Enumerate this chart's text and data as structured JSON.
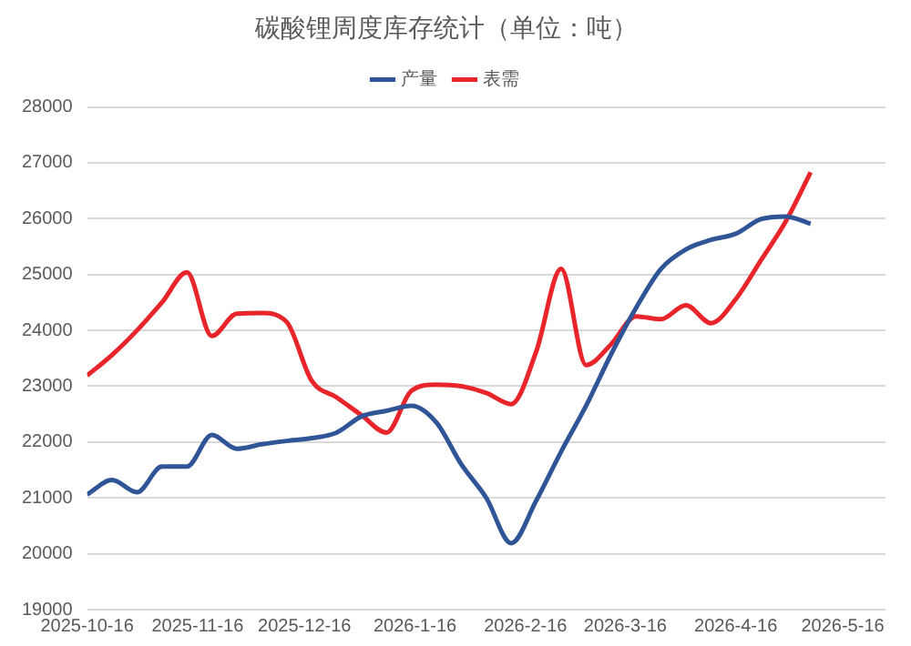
{
  "chart_data": {
    "type": "line",
    "title": "碳酸锂周度库存统计（单位：吨）",
    "x": [
      "2025-10-16",
      "2025-10-23",
      "2025-10-30",
      "2025-11-06",
      "2025-11-13",
      "2025-11-20",
      "2025-11-27",
      "2025-12-04",
      "2025-12-11",
      "2025-12-18",
      "2025-12-25",
      "2026-01-01",
      "2026-01-08",
      "2026-01-15",
      "2026-01-22",
      "2026-01-29",
      "2026-02-05",
      "2026-02-12",
      "2026-02-19",
      "2026-02-26",
      "2026-03-05",
      "2026-03-12",
      "2026-03-19",
      "2026-03-26",
      "2026-04-02",
      "2026-04-09",
      "2026-04-16",
      "2026-04-23",
      "2026-04-30",
      "2026-05-07"
    ],
    "series": [
      {
        "name": "产量",
        "color": "#2f5597",
        "values": [
          21060,
          21320,
          21100,
          21560,
          21560,
          22130,
          21880,
          21960,
          22020,
          22070,
          22170,
          22460,
          22560,
          22650,
          22350,
          21600,
          21000,
          20190,
          20950,
          21830,
          22650,
          23570,
          24400,
          25100,
          25450,
          25620,
          25730,
          25990,
          26040,
          25910
        ]
      },
      {
        "name": "表需",
        "color": "#e8252a",
        "values": [
          23190,
          23560,
          24000,
          24500,
          25040,
          23900,
          24300,
          24310,
          24150,
          23100,
          22800,
          22480,
          22170,
          22920,
          23030,
          23000,
          22880,
          22680,
          23620,
          25100,
          23380,
          23750,
          24250,
          24200,
          24450,
          24130,
          24560,
          25250,
          25950,
          26830
        ]
      }
    ],
    "xlim": [
      "2025-10-16",
      "2026-05-28"
    ],
    "xticks": [
      {
        "value": "2025-10-16",
        "label": "2025-10-16"
      },
      {
        "value": "2025-11-16",
        "label": "2025-11-16"
      },
      {
        "value": "2025-12-16",
        "label": "2025-12-16"
      },
      {
        "value": "2026-01-16",
        "label": "2026-1-16"
      },
      {
        "value": "2026-02-16",
        "label": "2026-2-16"
      },
      {
        "value": "2026-03-16",
        "label": "2026-3-16"
      },
      {
        "value": "2026-04-16",
        "label": "2026-4-16"
      },
      {
        "value": "2026-05-16",
        "label": "2026-5-16"
      }
    ],
    "ylim": [
      19000,
      28000
    ],
    "yticks": [
      19000,
      20000,
      21000,
      22000,
      23000,
      24000,
      25000,
      26000,
      27000,
      28000
    ],
    "grid": "y",
    "legend": "top",
    "marker": "none",
    "line_style": "solid"
  }
}
